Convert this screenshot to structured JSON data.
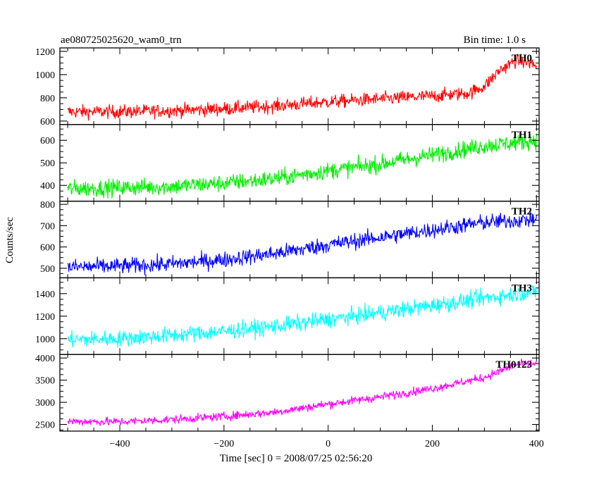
{
  "header": {
    "title": "ae080725025620_wam0_trn",
    "bin_time": "Bin time: 1.0 s"
  },
  "chart_data": {
    "type": "line",
    "xlabel": "Time [sec] 0 = 2008/07/25 02:56:20",
    "ylabel": "Counts/sec",
    "xlim": [
      -515,
      405
    ],
    "xticks": [
      -400,
      -200,
      0,
      200,
      400
    ],
    "panels": [
      {
        "name": "TH0",
        "color": "#ff0000",
        "ylim": [
          570,
          1230
        ],
        "yticks": [
          600,
          800,
          1000,
          1200
        ],
        "noise": 40,
        "profile": [
          [
            -500,
            680
          ],
          [
            -400,
            680
          ],
          [
            -300,
            690
          ],
          [
            -200,
            705
          ],
          [
            -100,
            730
          ],
          [
            0,
            765
          ],
          [
            100,
            790
          ],
          [
            200,
            815
          ],
          [
            270,
            840
          ],
          [
            300,
            900
          ],
          [
            330,
            1040
          ],
          [
            360,
            1120
          ],
          [
            390,
            1100
          ],
          [
            400,
            1070
          ]
        ]
      },
      {
        "name": "TH1",
        "color": "#00ee00",
        "ylim": [
          330,
          670
        ],
        "yticks": [
          400,
          500,
          600
        ],
        "noise": 26,
        "profile": [
          [
            -500,
            385
          ],
          [
            -400,
            390
          ],
          [
            -300,
            395
          ],
          [
            -200,
            410
          ],
          [
            -100,
            430
          ],
          [
            0,
            465
          ],
          [
            100,
            495
          ],
          [
            200,
            535
          ],
          [
            300,
            575
          ],
          [
            400,
            600
          ]
        ]
      },
      {
        "name": "TH2",
        "color": "#0000ff",
        "ylim": [
          455,
          815
        ],
        "yticks": [
          500,
          600,
          700,
          800
        ],
        "noise": 26,
        "profile": [
          [
            -500,
            505
          ],
          [
            -400,
            510
          ],
          [
            -300,
            520
          ],
          [
            -200,
            540
          ],
          [
            -100,
            570
          ],
          [
            0,
            610
          ],
          [
            100,
            645
          ],
          [
            200,
            680
          ],
          [
            300,
            715
          ],
          [
            400,
            730
          ]
        ]
      },
      {
        "name": "TH3",
        "color": "#00ffff",
        "ylim": [
          860,
          1540
        ],
        "yticks": [
          1000,
          1200,
          1400
        ],
        "noise": 50,
        "profile": [
          [
            -500,
            990
          ],
          [
            -400,
            1000
          ],
          [
            -300,
            1030
          ],
          [
            -200,
            1065
          ],
          [
            -100,
            1110
          ],
          [
            0,
            1170
          ],
          [
            100,
            1230
          ],
          [
            200,
            1295
          ],
          [
            300,
            1360
          ],
          [
            400,
            1420
          ]
        ]
      },
      {
        "name": "TH0123",
        "color": "#ff00ff",
        "ylim": [
          2350,
          4080
        ],
        "yticks": [
          2500,
          3000,
          3500,
          4000
        ],
        "noise": 65,
        "profile": [
          [
            -500,
            2570
          ],
          [
            -400,
            2560
          ],
          [
            -300,
            2610
          ],
          [
            -200,
            2680
          ],
          [
            -100,
            2780
          ],
          [
            0,
            2960
          ],
          [
            100,
            3120
          ],
          [
            200,
            3310
          ],
          [
            300,
            3560
          ],
          [
            360,
            3850
          ],
          [
            400,
            3880
          ]
        ]
      }
    ]
  }
}
